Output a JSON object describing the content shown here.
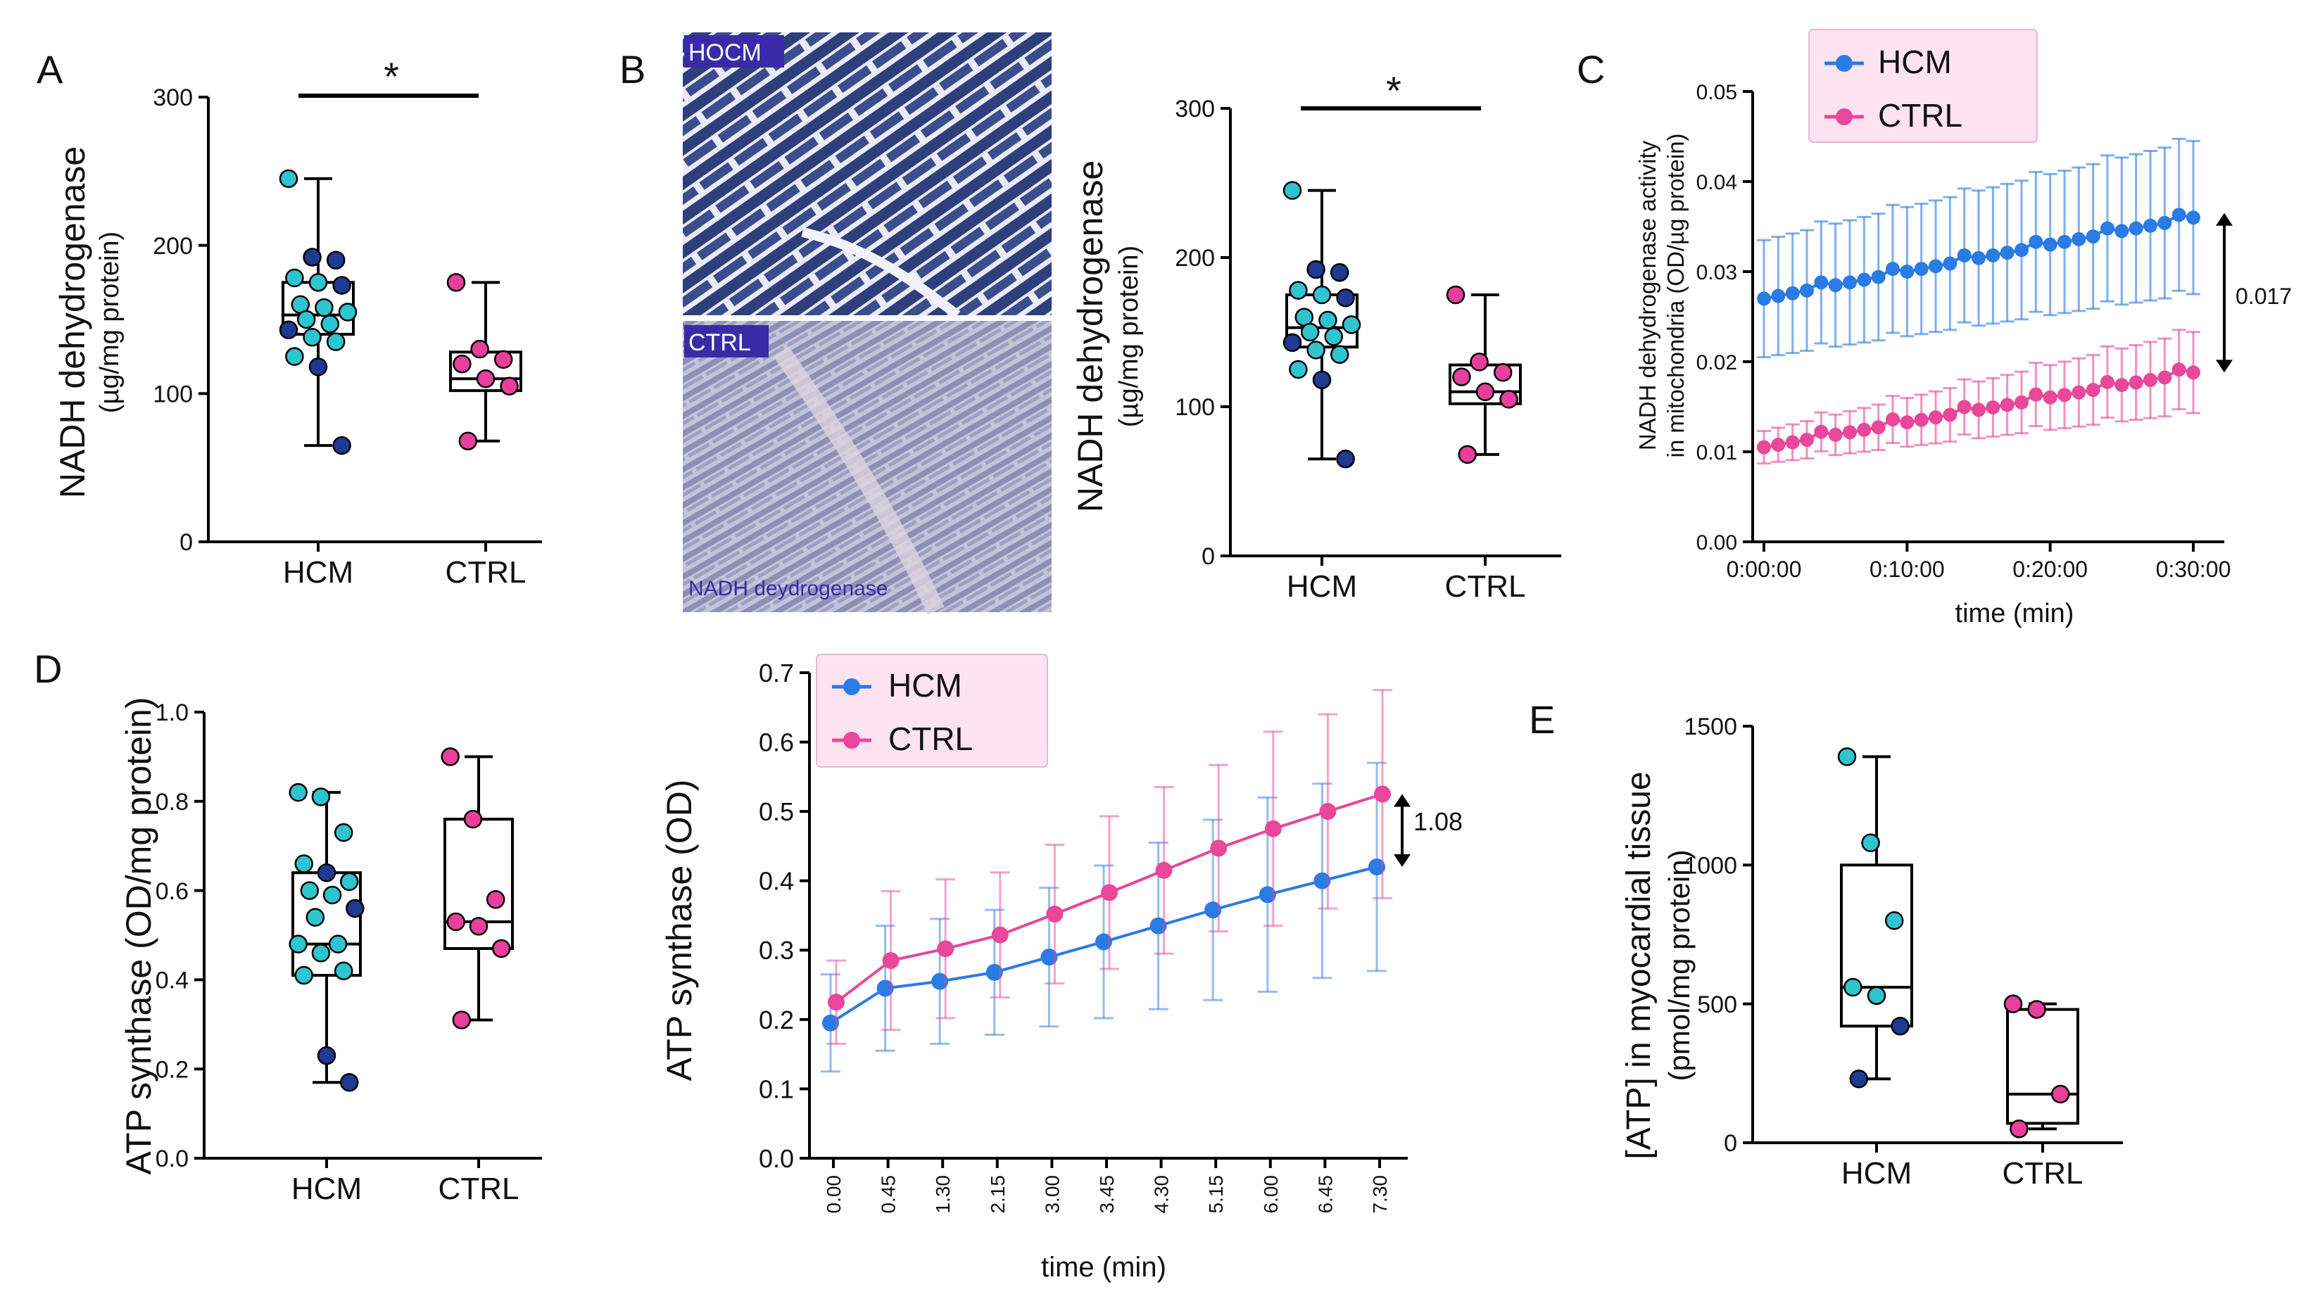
{
  "colors": {
    "hcm_light": "#2ec4d0",
    "hcm_dark": "#1f3a93",
    "ctrl": "#e83e9c",
    "line_hcm": "#2a7be4",
    "line_ctrl": "#e8479a",
    "legend_fill": "#fde3f0"
  },
  "panels": {
    "A": {
      "letter": "A",
      "ylabel": "NADH dehydrogenase",
      "ylabel_unit": "(µg/mg protein)",
      "significance": "*"
    },
    "B": {
      "letter": "B",
      "ylabel": "NADH dehydrogenase",
      "ylabel_unit": "(µg/mg protein)",
      "significance": "*",
      "histology": {
        "top_label": "HOCM",
        "bottom_label": "CTRL",
        "caption": "NADH deydrogenase"
      }
    },
    "C": {
      "letter": "C",
      "ylabel": "NADH dehydrogenase activity",
      "ylabel_unit": "in mitochondria (OD/µg protein)",
      "xlabel": "time (min)",
      "annotation": "0.017",
      "legend": [
        "HCM",
        "CTRL"
      ]
    },
    "D": {
      "letter": "D",
      "ylabel": "ATP synthase (OD/mg protein)"
    },
    "D2": {
      "ylabel": "ATP synthase (OD)",
      "xlabel": "time (min)",
      "annotation": "1.08",
      "legend": [
        "HCM",
        "CTRL"
      ]
    },
    "E": {
      "letter": "E",
      "ylabel": "[ATP] in myocardial tissue",
      "ylabel_unit": "(pmol/mg protein)"
    }
  },
  "chart_data": [
    {
      "id": "A",
      "type": "box",
      "categories": [
        "HCM",
        "CTRL"
      ],
      "ylim": [
        0,
        300
      ],
      "yticks": [
        "0",
        "100",
        "200",
        "300"
      ],
      "boxes": [
        {
          "min": 65,
          "q1": 140,
          "median": 153,
          "q3": 175,
          "max": 245
        },
        {
          "min": 68,
          "q1": 102,
          "median": 110,
          "q3": 128,
          "max": 175
        }
      ],
      "points": [
        {
          "values": [
            245,
            192,
            190,
            178,
            175,
            173,
            160,
            158,
            155,
            150,
            147,
            143,
            138,
            135,
            125,
            118,
            65
          ],
          "shades": [
            "light",
            "dark",
            "dark",
            "light",
            "light",
            "dark",
            "light",
            "light",
            "light",
            "light",
            "light",
            "dark",
            "light",
            "light",
            "light",
            "dark",
            "dark"
          ]
        },
        {
          "values": [
            175,
            130,
            123,
            120,
            110,
            105,
            68
          ],
          "shades": [
            "ctrl",
            "ctrl",
            "ctrl",
            "ctrl",
            "ctrl",
            "ctrl",
            "ctrl"
          ]
        }
      ]
    },
    {
      "id": "B",
      "type": "box",
      "categories": [
        "HCM",
        "CTRL"
      ],
      "ylim": [
        0,
        300
      ],
      "yticks": [
        "0",
        "100",
        "200",
        "300"
      ],
      "boxes": [
        {
          "min": 65,
          "q1": 140,
          "median": 153,
          "q3": 175,
          "max": 245
        },
        {
          "min": 68,
          "q1": 102,
          "median": 110,
          "q3": 128,
          "max": 175
        }
      ],
      "points": [
        {
          "values": [
            245,
            192,
            190,
            178,
            175,
            173,
            160,
            158,
            155,
            150,
            147,
            143,
            138,
            135,
            125,
            118,
            65
          ],
          "shades": [
            "light",
            "dark",
            "dark",
            "light",
            "light",
            "dark",
            "light",
            "light",
            "light",
            "light",
            "light",
            "dark",
            "light",
            "light",
            "light",
            "dark",
            "dark"
          ]
        },
        {
          "values": [
            175,
            130,
            123,
            120,
            110,
            105,
            68
          ],
          "shades": [
            "ctrl",
            "ctrl",
            "ctrl",
            "ctrl",
            "ctrl",
            "ctrl",
            "ctrl"
          ]
        }
      ]
    },
    {
      "id": "C",
      "type": "line",
      "ylim": [
        0,
        0.05
      ],
      "yticks": [
        "0.00",
        "0.01",
        "0.02",
        "0.03",
        "0.04",
        "0.05"
      ],
      "xlim": [
        0,
        31
      ],
      "xticks": [
        {
          "x": 1,
          "label": "0:00:00"
        },
        {
          "x": 11,
          "label": "0:10:00"
        },
        {
          "x": 21,
          "label": "0:20:00"
        },
        {
          "x": 31,
          "label": "0:30:00"
        }
      ],
      "x": [
        1,
        2,
        3,
        4,
        5,
        6,
        7,
        8,
        9,
        10,
        11,
        12,
        13,
        14,
        15,
        16,
        17,
        18,
        19,
        20,
        21,
        22,
        23,
        24,
        25,
        26,
        27,
        28,
        29,
        30,
        31
      ],
      "series": [
        {
          "name": "HCM",
          "start": 0.027,
          "end": 0.036,
          "err_start": 0.0065,
          "err_end": 0.0085
        },
        {
          "name": "CTRL",
          "start": 0.0105,
          "end": 0.0188,
          "err_start": 0.0018,
          "err_end": 0.0045
        }
      ]
    },
    {
      "id": "D",
      "type": "box",
      "categories": [
        "HCM",
        "CTRL"
      ],
      "ylim": [
        0,
        1.0
      ],
      "yticks": [
        "0.0",
        "0.2",
        "0.4",
        "0.6",
        "0.8",
        "1.0"
      ],
      "boxes": [
        {
          "min": 0.17,
          "q1": 0.41,
          "median": 0.48,
          "q3": 0.64,
          "max": 0.82
        },
        {
          "min": 0.31,
          "q1": 0.47,
          "median": 0.53,
          "q3": 0.76,
          "max": 0.9
        }
      ],
      "points": [
        {
          "values": [
            0.82,
            0.81,
            0.73,
            0.66,
            0.64,
            0.62,
            0.6,
            0.59,
            0.56,
            0.54,
            0.48,
            0.48,
            0.46,
            0.42,
            0.41,
            0.23,
            0.17
          ],
          "shades": [
            "light",
            "light",
            "light",
            "light",
            "dark",
            "light",
            "light",
            "light",
            "dark",
            "light",
            "light",
            "light",
            "light",
            "light",
            "light",
            "dark",
            "dark"
          ]
        },
        {
          "values": [
            0.9,
            0.76,
            0.58,
            0.53,
            0.52,
            0.47,
            0.31
          ],
          "shades": [
            "ctrl",
            "ctrl",
            "ctrl",
            "ctrl",
            "ctrl",
            "ctrl",
            "ctrl"
          ]
        }
      ]
    },
    {
      "id": "D2",
      "type": "line",
      "ylim": [
        0,
        0.7
      ],
      "yticks": [
        "0.0",
        "0.1",
        "0.2",
        "0.3",
        "0.4",
        "0.5",
        "0.6",
        "0.7"
      ],
      "categories": [
        "0.00",
        "0.45",
        "1.30",
        "2.15",
        "3.00",
        "3.45",
        "4.30",
        "5.15",
        "6.00",
        "6.45",
        "7.30"
      ],
      "series": [
        {
          "name": "HCM",
          "values": [
            0.195,
            0.245,
            0.255,
            0.268,
            0.29,
            0.312,
            0.335,
            0.358,
            0.38,
            0.4,
            0.42
          ],
          "err": [
            0.07,
            0.09,
            0.09,
            0.09,
            0.1,
            0.11,
            0.12,
            0.13,
            0.14,
            0.14,
            0.15
          ]
        },
        {
          "name": "CTRL",
          "values": [
            0.225,
            0.285,
            0.302,
            0.322,
            0.352,
            0.383,
            0.415,
            0.447,
            0.475,
            0.5,
            0.525
          ],
          "err": [
            0.06,
            0.1,
            0.1,
            0.09,
            0.1,
            0.11,
            0.12,
            0.12,
            0.14,
            0.14,
            0.15
          ]
        }
      ]
    },
    {
      "id": "E",
      "type": "box",
      "categories": [
        "HCM",
        "CTRL"
      ],
      "ylim": [
        0,
        1500
      ],
      "yticks": [
        "0",
        "500",
        "1000",
        "1500"
      ],
      "boxes": [
        {
          "min": 230,
          "q1": 420,
          "median": 560,
          "q3": 1000,
          "max": 1390
        },
        {
          "min": 50,
          "q1": 70,
          "median": 175,
          "q3": 480,
          "max": 500
        }
      ],
      "points": [
        {
          "values": [
            1390,
            1080,
            800,
            560,
            530,
            420,
            230
          ],
          "shades": [
            "light",
            "light",
            "light",
            "light",
            "light",
            "dark",
            "dark"
          ]
        },
        {
          "values": [
            500,
            480,
            175,
            50
          ],
          "shades": [
            "ctrl",
            "ctrl",
            "ctrl",
            "ctrl"
          ]
        }
      ]
    }
  ]
}
